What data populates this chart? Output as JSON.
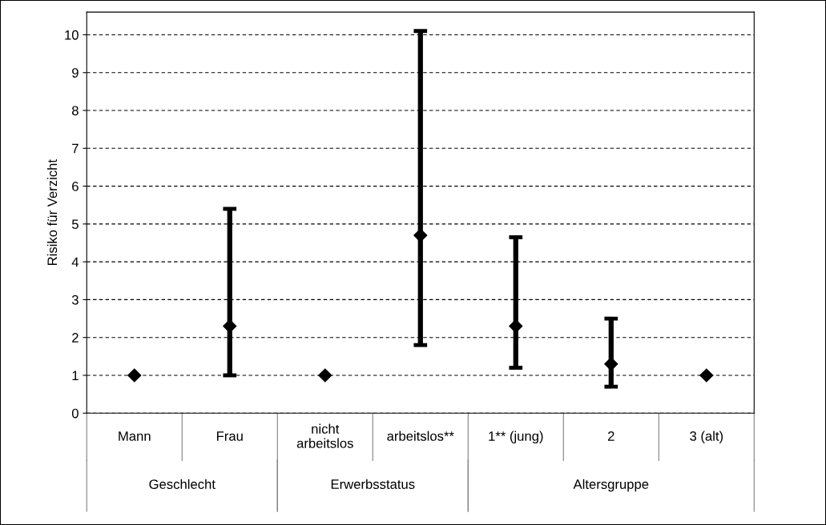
{
  "chart_data": {
    "type": "scatter",
    "ylabel": "Risiko für Verzicht",
    "categories": [
      "Mann",
      "Frau",
      "nicht\narbeitslos",
      "arbeitslos**",
      "1** (jung)",
      "2",
      "3 (alt)"
    ],
    "series": [
      {
        "color": "#000000",
        "values": [
          1,
          2.3,
          1,
          4.7,
          2.3,
          1.3,
          1
        ],
        "errors": [
          null,
          [
            1.0,
            5.4
          ],
          null,
          [
            1.8,
            10.1
          ],
          [
            1.2,
            4.65
          ],
          [
            0.7,
            2.5
          ],
          null
        ]
      }
    ],
    "ylim": [
      0,
      10.6
    ],
    "yticks": [
      0,
      1,
      2,
      3,
      4,
      5,
      6,
      7,
      8,
      9,
      10
    ],
    "grid": "y",
    "marker": "diamond",
    "legend": false,
    "annotations": [
      "Geschlecht",
      "Erwerbsstatus",
      "Altersgruppe"
    ]
  }
}
